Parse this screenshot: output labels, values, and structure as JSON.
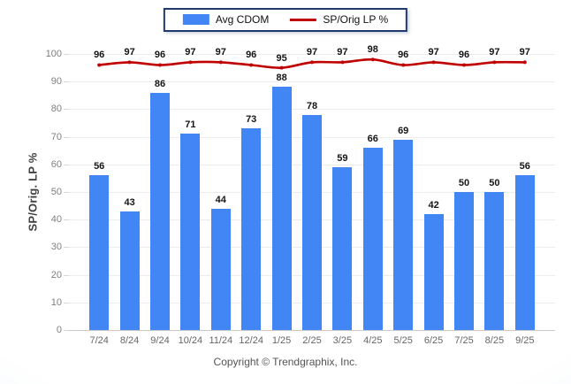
{
  "legend": {
    "items": [
      {
        "label": "Avg CDOM",
        "swatch": "bar-swatch",
        "color": "#4285f4"
      },
      {
        "label": "SP/Orig LP %",
        "swatch": "line-swatch",
        "color": "#c00000"
      }
    ]
  },
  "ylabel": "SP/Orig. LP %",
  "copyright": "Copyright © Trendgraphix, Inc.",
  "colors": {
    "bar": "#4285f4",
    "line": "#c00000",
    "legend_border": "#1f3a6e",
    "gridline": "#ececec",
    "axis": "#c9c9c9"
  },
  "chart_data": {
    "type": "bar",
    "title": "",
    "xlabel": "",
    "ylabel": "SP/Orig. LP %",
    "ylim": [
      0,
      100
    ],
    "yticks": [
      0,
      10,
      20,
      30,
      40,
      50,
      60,
      70,
      80,
      90,
      100
    ],
    "grid": true,
    "legend_position": "top-center",
    "categories": [
      "7/24",
      "8/24",
      "9/24",
      "10/24",
      "11/24",
      "12/24",
      "1/25",
      "2/25",
      "3/25",
      "4/25",
      "5/25",
      "6/25",
      "7/25",
      "8/25",
      "9/25"
    ],
    "series": [
      {
        "name": "Avg CDOM",
        "type": "bar",
        "color": "#4285f4",
        "values": [
          56,
          43,
          86,
          71,
          44,
          73,
          88,
          78,
          59,
          66,
          69,
          42,
          50,
          50,
          56
        ]
      },
      {
        "name": "SP/Orig LP %",
        "type": "line",
        "color": "#c00000",
        "values": [
          96,
          97,
          96,
          97,
          97,
          96,
          95,
          97,
          97,
          98,
          96,
          97,
          96,
          97,
          97
        ]
      }
    ]
  }
}
